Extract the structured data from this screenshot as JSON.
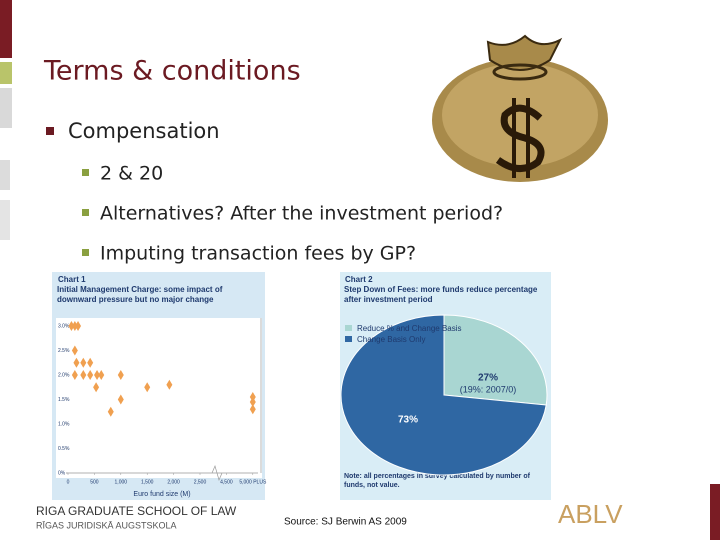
{
  "slide": {
    "title": "Terms & conditions",
    "bullets": [
      "Compensation",
      "2 & 20",
      "Alternatives? After the investment period?",
      "Imputing transaction fees by GP?"
    ],
    "footer": {
      "school": "RIGA GRADUATE SCHOOL OF LAW",
      "school_lv": "RĪGAS JURIDISKĀ AUGSTSKOLA",
      "source": "Source: SJ Berwin AS 2009",
      "logo": "ABLV"
    }
  },
  "chart_data": [
    {
      "type": "scatter",
      "label": "Chart 1",
      "title": "Initial Management Charge: some impact of downward pressure but no major change",
      "xlabel": "Euro fund size (M)",
      "color": "#f0a050",
      "x": [
        65,
        130,
        190,
        130,
        160,
        290,
        420,
        130,
        290,
        420,
        550,
        630,
        1000,
        532,
        1500,
        1920,
        1000,
        810,
        5000,
        5000,
        5000
      ],
      "values": [
        3.0,
        3.0,
        3.0,
        2.5,
        2.25,
        2.25,
        2.25,
        2.0,
        2.0,
        2.0,
        2.0,
        2.0,
        2.0,
        1.75,
        1.75,
        1.8,
        1.5,
        1.25,
        1.55,
        1.45,
        1.3
      ],
      "xlim": [
        0,
        5000
      ],
      "ylim": [
        0,
        3.0
      ],
      "xticks": [
        0,
        500,
        {
          "value": 1000,
          "label": "1,000"
        },
        {
          "value": 1500,
          "label": "1,500"
        },
        {
          "value": 2000,
          "label": "2,000"
        },
        {
          "value": 2500,
          "label": "2,500"
        },
        {
          "value": 4500,
          "label": "4,500"
        },
        {
          "value": 5000,
          "label": "5,000 PLUS"
        }
      ],
      "yticks": [
        {
          "value": 0,
          "label": "0%"
        },
        {
          "value": 0.5,
          "label": "0.5%"
        },
        {
          "value": 1.0,
          "label": "1.0%"
        },
        {
          "value": 1.5,
          "label": "1.5%"
        },
        {
          "value": 2.0,
          "label": "2.0%"
        },
        {
          "value": 2.5,
          "label": "2.5%"
        },
        {
          "value": 3.0,
          "label": "3.0%"
        }
      ]
    },
    {
      "type": "pie",
      "label": "Chart 2",
      "title": "Step Down of Fees: more funds reduce percentage after investment period",
      "categories": [
        "Reduce % and Change Basis",
        "Change Basis Only"
      ],
      "values": [
        27,
        73
      ],
      "value_labels": [
        "27%",
        "73%"
      ],
      "colors": [
        "#a9d6d2",
        "#2f67a3"
      ],
      "annotation": "(19%: 2007/0)",
      "note": "Note: all percentages in survey calculated by number of funds, not value."
    }
  ]
}
